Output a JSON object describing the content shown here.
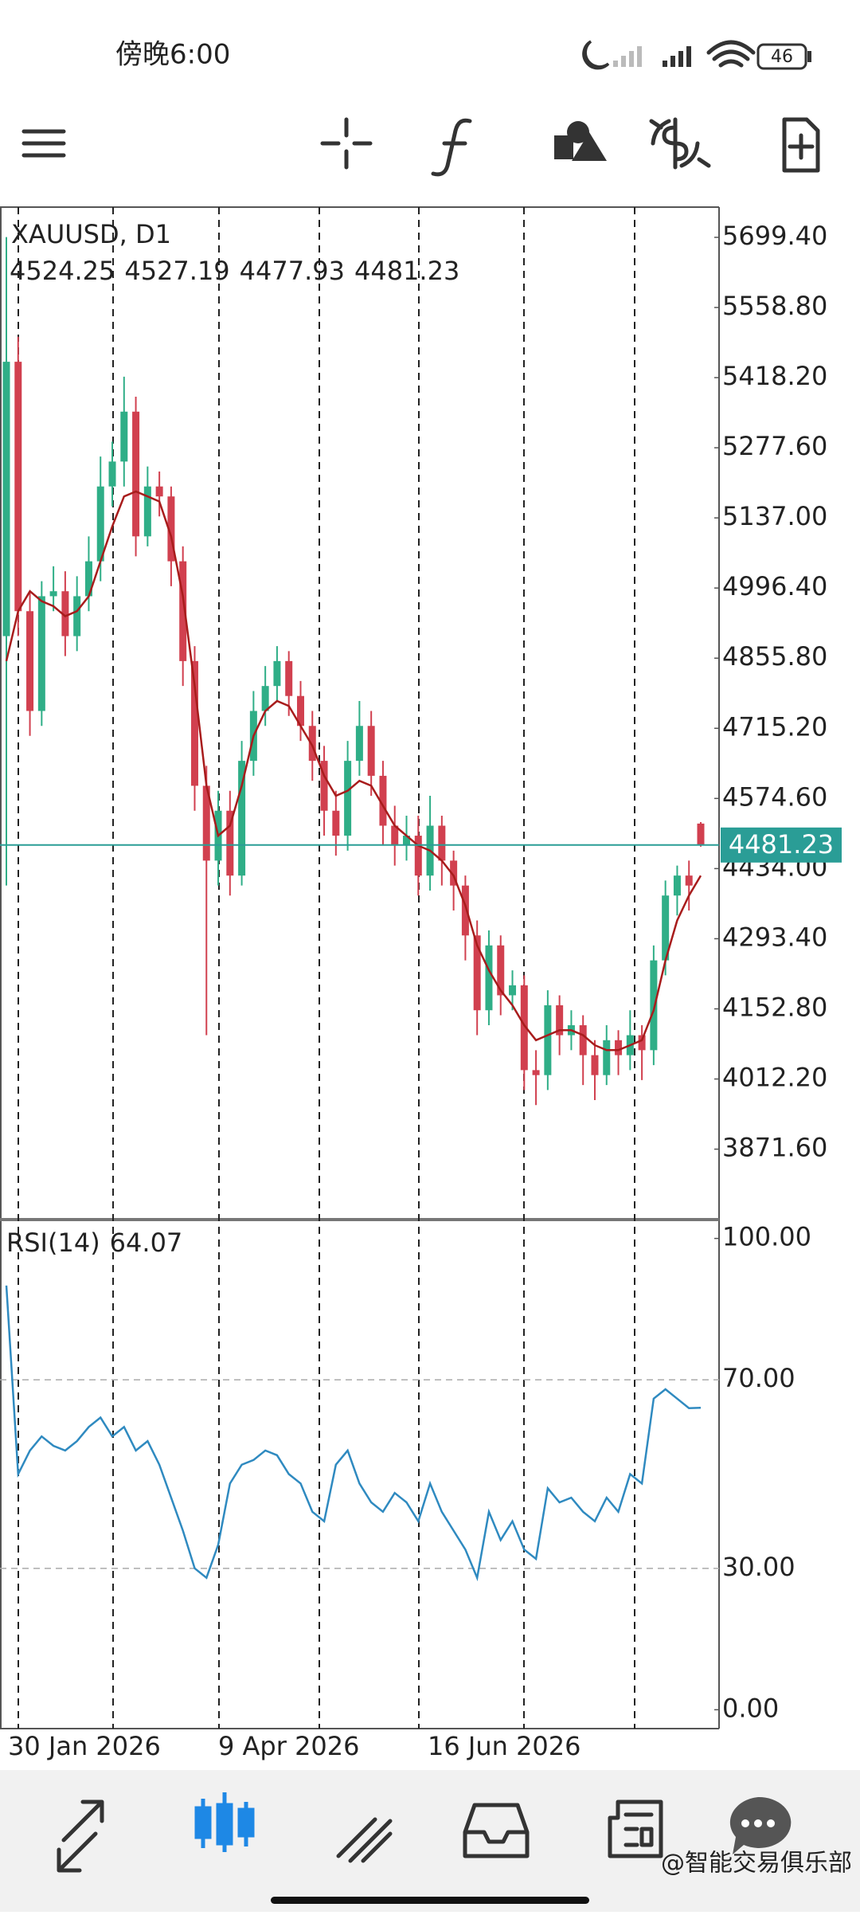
{
  "status_bar": {
    "time": "傍晚6:00",
    "battery": "46"
  },
  "watermark": "@智能交易俱乐部",
  "chart_data": [
    {
      "type": "candlestick",
      "title": "XAUUSD, D1",
      "up_color": "#2fae87",
      "down_color": "#d1404f",
      "price_line_color": "#2a9d96",
      "open": [
        4900,
        5450,
        4950,
        4750,
        4980,
        4990,
        4900,
        4980,
        5050,
        5200,
        5250,
        5350,
        5100,
        5200,
        5180,
        5050,
        4850,
        4600,
        4450,
        4550,
        4420,
        4650,
        4750,
        4800,
        4850,
        4780,
        4720,
        4650,
        4550,
        4500,
        4650,
        4720,
        4620,
        4520,
        4480,
        4500,
        4420,
        4520,
        4450,
        4400,
        4300,
        4150,
        4280,
        4180,
        4200,
        4030,
        4020,
        4160,
        4100,
        4120,
        4060,
        4020,
        4090,
        4060,
        4100,
        4070,
        4250,
        4380,
        4420,
        4524.25
      ],
      "high": [
        5700,
        5500,
        4990,
        5010,
        5040,
        5030,
        5020,
        5100,
        5260,
        5290,
        5420,
        5380,
        5240,
        5230,
        5200,
        5080,
        4880,
        4640,
        4590,
        4590,
        4690,
        4790,
        4840,
        4880,
        4870,
        4810,
        4750,
        4680,
        4590,
        4690,
        4770,
        4750,
        4650,
        4560,
        4540,
        4540,
        4580,
        4540,
        4470,
        4420,
        4330,
        4310,
        4300,
        4230,
        4220,
        4070,
        4190,
        4180,
        4150,
        4140,
        4090,
        4120,
        4110,
        4150,
        4120,
        4280,
        4410,
        4440,
        4450,
        4527.19
      ],
      "low": [
        4400,
        4900,
        4700,
        4720,
        4950,
        4860,
        4870,
        4950,
        5010,
        5160,
        5200,
        5060,
        5080,
        5140,
        5000,
        4800,
        4550,
        4100,
        4400,
        4380,
        4400,
        4620,
        4720,
        4770,
        4740,
        4690,
        4610,
        4500,
        4460,
        4470,
        4620,
        4580,
        4480,
        4440,
        4450,
        4380,
        4390,
        4400,
        4350,
        4250,
        4100,
        4120,
        4140,
        4150,
        3990,
        3960,
        3990,
        4060,
        4070,
        4000,
        3970,
        4000,
        4020,
        4030,
        4010,
        4040,
        4220,
        4340,
        4350,
        4477.93
      ],
      "close": [
        5450,
        4950,
        4750,
        4980,
        4990,
        4900,
        4980,
        5050,
        5200,
        5250,
        5350,
        5100,
        5200,
        5180,
        5050,
        4850,
        4600,
        4450,
        4550,
        4420,
        4650,
        4750,
        4800,
        4850,
        4780,
        4720,
        4650,
        4550,
        4500,
        4650,
        4720,
        4620,
        4520,
        4480,
        4500,
        4420,
        4520,
        4450,
        4400,
        4300,
        4150,
        4280,
        4180,
        4200,
        4030,
        4020,
        4160,
        4100,
        4120,
        4060,
        4020,
        4090,
        4060,
        4100,
        4070,
        4250,
        4380,
        4420,
        4400,
        4481.23
      ],
      "overlay": {
        "color": "#a81c1c",
        "values": [
          4850,
          4950,
          4990,
          4970,
          4960,
          4940,
          4950,
          4980,
          5050,
          5120,
          5180,
          5190,
          5180,
          5170,
          5100,
          4980,
          4800,
          4600,
          4500,
          4520,
          4600,
          4700,
          4750,
          4770,
          4760,
          4720,
          4680,
          4620,
          4580,
          4590,
          4610,
          4600,
          4560,
          4520,
          4500,
          4480,
          4470,
          4450,
          4420,
          4360,
          4280,
          4230,
          4190,
          4160,
          4120,
          4090,
          4100,
          4110,
          4110,
          4100,
          4080,
          4070,
          4070,
          4080,
          4090,
          4150,
          4250,
          4330,
          4380,
          4420
        ]
      },
      "ylim": [
        3732,
        5760
      ],
      "yticks": [
        {
          "value": 5699.4,
          "label": "5699.40"
        },
        {
          "value": 5558.8,
          "label": "5558.80"
        },
        {
          "value": 5418.2,
          "label": "5418.20"
        },
        {
          "value": 5277.6,
          "label": "5277.60"
        },
        {
          "value": 5137,
          "label": "5137.00"
        },
        {
          "value": 4996.4,
          "label": "4996.40"
        },
        {
          "value": 4855.8,
          "label": "4855.80"
        },
        {
          "value": 4715.2,
          "label": "4715.20"
        },
        {
          "value": 4574.6,
          "label": "4574.60"
        },
        {
          "value": 4434,
          "label": "4434.00"
        },
        {
          "value": 4293.4,
          "label": "4293.40"
        },
        {
          "value": 4152.8,
          "label": "4152.80"
        },
        {
          "value": 4012.2,
          "label": "4012.20"
        },
        {
          "value": 3871.6,
          "label": "3871.60"
        }
      ],
      "x_labels": [
        "30 Jan 2026",
        "9 Apr 2026",
        "16 Jun 2026"
      ]
    },
    {
      "type": "line",
      "title": "RSI(14)",
      "color": "#2f8ac0",
      "values": [
        90,
        50,
        55,
        58,
        56,
        55,
        57,
        60,
        62,
        58,
        60,
        55,
        57,
        52,
        45,
        38,
        30,
        28,
        35,
        48,
        52,
        53,
        55,
        54,
        50,
        48,
        42,
        40,
        52,
        55,
        48,
        44,
        42,
        46,
        44,
        40,
        48,
        42,
        38,
        34,
        28,
        42,
        36,
        40,
        34,
        32,
        47,
        44,
        45,
        42,
        40,
        45,
        42,
        50,
        48,
        66,
        68,
        66,
        64,
        64.07
      ],
      "ylim": [
        -4,
        104
      ],
      "yticks": [
        {
          "value": 100,
          "label": "100.00"
        },
        {
          "value": 70,
          "label": "70.00"
        },
        {
          "value": 30,
          "label": "30.00"
        },
        {
          "value": 0,
          "label": "0.00"
        }
      ]
    }
  ]
}
